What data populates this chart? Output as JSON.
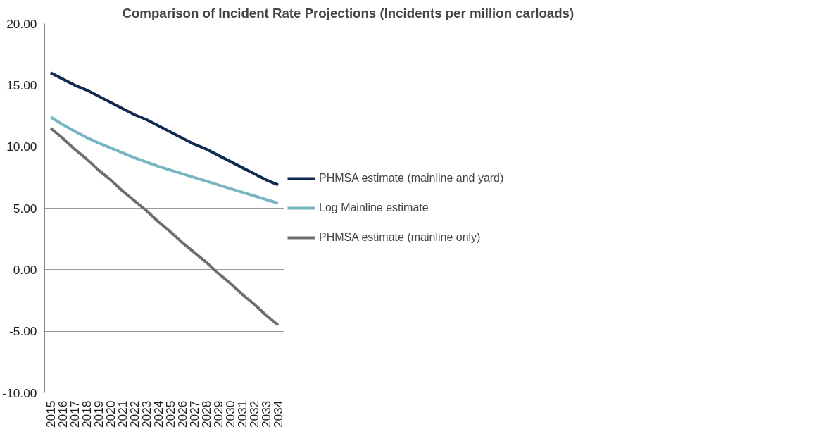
{
  "chart_data": {
    "type": "line",
    "title": "Comparison of Incident Rate Projections (Incidents per million carloads)",
    "categories": [
      "2015",
      "2016",
      "2017",
      "2018",
      "2019",
      "2020",
      "2021",
      "2022",
      "2023",
      "2024",
      "2025",
      "2026",
      "2027",
      "2028",
      "2029",
      "2030",
      "2031",
      "2032",
      "2033",
      "2034"
    ],
    "series": [
      {
        "name": "PHMSA estimate (mainline and yard)",
        "color": "#0e2a4d",
        "values": [
          16.0,
          15.5,
          15.0,
          14.6,
          14.1,
          13.6,
          13.1,
          12.6,
          12.2,
          11.7,
          11.2,
          10.7,
          10.2,
          9.8,
          9.3,
          8.8,
          8.3,
          7.8,
          7.3,
          6.9
        ]
      },
      {
        "name": "Log Mainline estimate",
        "color": "#77b5c0",
        "values": [
          12.4,
          11.8,
          11.25,
          10.75,
          10.3,
          9.9,
          9.5,
          9.1,
          8.75,
          8.4,
          8.1,
          7.8,
          7.5,
          7.2,
          6.9,
          6.6,
          6.3,
          6.0,
          5.7,
          5.4
        ]
      },
      {
        "name": "PHMSA estimate (mainline only)",
        "color": "#6b6e72",
        "values": [
          11.5,
          10.7,
          9.8,
          9.0,
          8.1,
          7.3,
          6.4,
          5.6,
          4.8,
          3.9,
          3.1,
          2.2,
          1.4,
          0.6,
          -0.3,
          -1.1,
          -2.0,
          -2.8,
          -3.7,
          -4.5
        ]
      }
    ],
    "ylim": [
      -10,
      20
    ],
    "yticks": [
      {
        "value": -10,
        "label": "-10.00"
      },
      {
        "value": -5,
        "label": "-5.00"
      },
      {
        "value": 0,
        "label": "0.00"
      },
      {
        "value": 5,
        "label": "5.00"
      },
      {
        "value": 10,
        "label": "10.00"
      },
      {
        "value": 15,
        "label": "15.00"
      },
      {
        "value": 20,
        "label": "20.00"
      }
    ],
    "grid": "y",
    "legend": "right",
    "marker": "none",
    "line_style": "solid"
  }
}
